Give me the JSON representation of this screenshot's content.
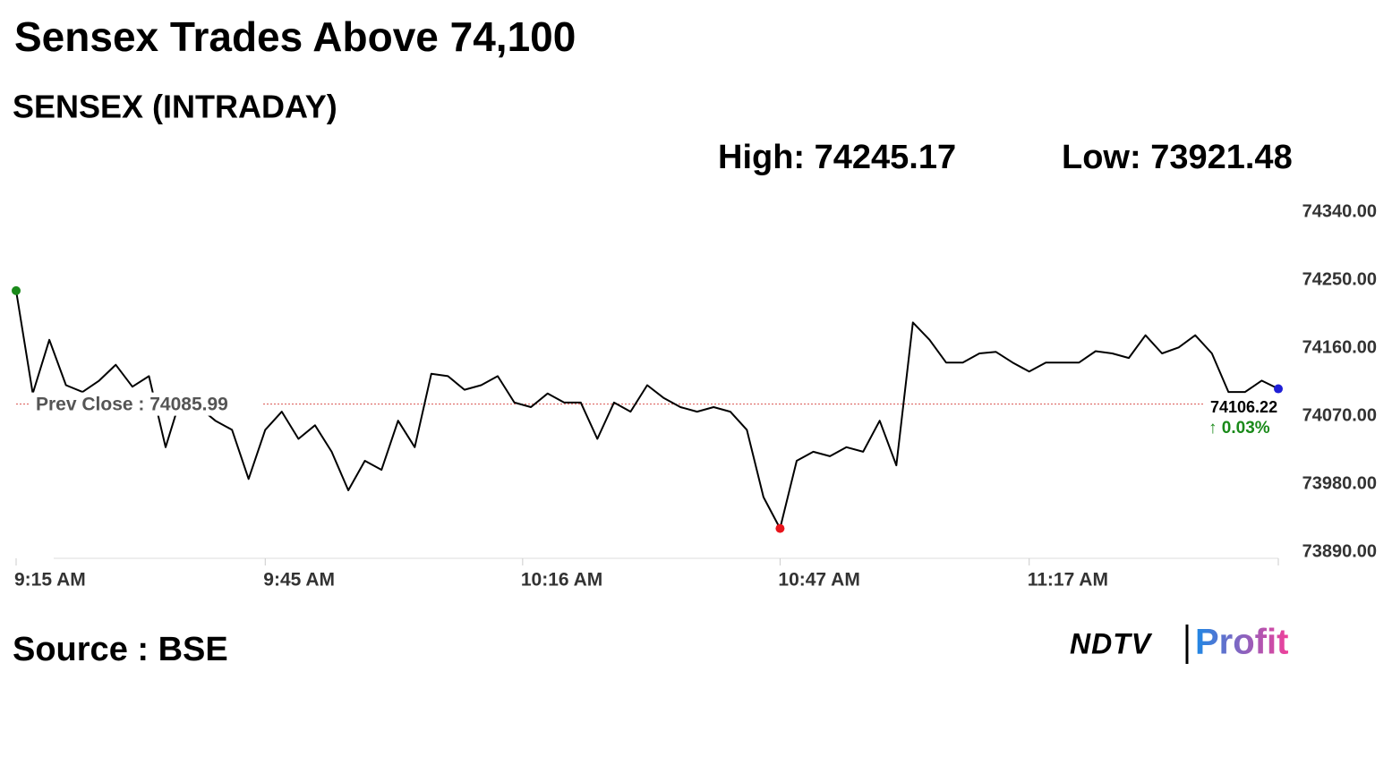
{
  "chart_data": {
    "type": "line",
    "title": "Sensex Trades Above 74,100",
    "subtitle": "SENSEX (INTRADAY)",
    "high_label": "High:",
    "high": 74245.17,
    "low_label": "Low:",
    "low": 73921.48,
    "prev_close_label": "Prev Close :",
    "prev_close": 74085.99,
    "prev_close_color": "#d9534f",
    "change_label": "↑ 0.03%",
    "change_color": "#1a8a1a",
    "source": "Source : BSE",
    "logo": [
      "NDTV",
      "Profit"
    ],
    "color": "#000000",
    "start_color": "#1a8a1a",
    "low_color": "#e8141b",
    "end_color": "#1f1fd6",
    "x": [
      "9:15 AM",
      "9:17 AM",
      "9:19 AM",
      "9:21 AM",
      "9:23 AM",
      "9:25 AM",
      "9:27 AM",
      "9:29 AM",
      "9:31 AM",
      "9:33 AM",
      "9:35 AM",
      "9:37 AM",
      "9:39 AM",
      "9:41 AM",
      "9:43 AM",
      "9:45 AM",
      "9:47 AM",
      "9:49 AM",
      "9:51 AM",
      "9:53 AM",
      "9:55 AM",
      "9:57 AM",
      "9:59 AM",
      "10:01 AM",
      "10:03 AM",
      "10:05 AM",
      "10:07 AM",
      "10:09 AM",
      "10:11 AM",
      "10:13 AM",
      "10:15 AM",
      "10:17 AM",
      "10:19 AM",
      "10:21 AM",
      "10:23 AM",
      "10:25 AM",
      "10:27 AM",
      "10:29 AM",
      "10:31 AM",
      "10:33 AM",
      "10:35 AM",
      "10:37 AM",
      "10:39 AM",
      "10:41 AM",
      "10:43 AM",
      "10:45 AM",
      "10:47 AM",
      "10:49 AM",
      "10:51 AM",
      "10:53 AM",
      "10:55 AM",
      "10:57 AM",
      "10:59 AM",
      "11:01 AM",
      "11:03 AM",
      "11:05 AM",
      "11:07 AM",
      "11:09 AM",
      "11:11 AM",
      "11:13 AM",
      "11:15 AM",
      "11:17 AM",
      "11:19 AM",
      "11:21 AM",
      "11:23 AM",
      "11:25 AM",
      "11:27 AM",
      "11:29 AM",
      "11:31 AM",
      "11:33 AM",
      "11:35 AM",
      "11:37 AM",
      "11:39 AM",
      "11:41 AM",
      "11:43 AM",
      "11:45 AM",
      "11:47 AM"
    ],
    "values": [
      74236,
      74100,
      74171,
      74111,
      74102,
      74117,
      74138,
      74109,
      74123,
      74029,
      74100,
      74082,
      74064,
      74052,
      73987,
      74052,
      74076,
      74040,
      74058,
      74023,
      73972,
      74011,
      73999,
      74064,
      74029,
      74126,
      74123,
      74105,
      74111,
      74123,
      74088,
      74082,
      74100,
      74088,
      74088,
      74040,
      74088,
      74076,
      74111,
      74094,
      74082,
      74076,
      74082,
      74076,
      74052,
      73963,
      73921.48,
      74011,
      74023,
      74017,
      74029,
      74023,
      74064,
      74005,
      74194,
      74171,
      74141,
      74141,
      74153,
      74155,
      74141,
      74129,
      74141,
      74141,
      74141,
      74156,
      74153,
      74147,
      74177,
      74153,
      74161,
      74177,
      74153,
      74102,
      74102,
      74117,
      74106.22
    ],
    "xlim": [
      "9:15 AM",
      "11:47 AM"
    ],
    "xticks": [
      "9:15 AM",
      "9:45 AM",
      "10:16 AM",
      "10:47 AM",
      "11:17 AM"
    ],
    "ylim": [
      73882,
      74340
    ],
    "yticks": [
      {
        "value": 74340,
        "label": "74340.00"
      },
      {
        "value": 74250,
        "label": "74250.00"
      },
      {
        "value": 74160,
        "label": "74160.00"
      },
      {
        "value": 74070,
        "label": "74070.00"
      },
      {
        "value": 73980,
        "label": "73980.00"
      },
      {
        "value": 73890,
        "label": "73890.00"
      }
    ]
  }
}
